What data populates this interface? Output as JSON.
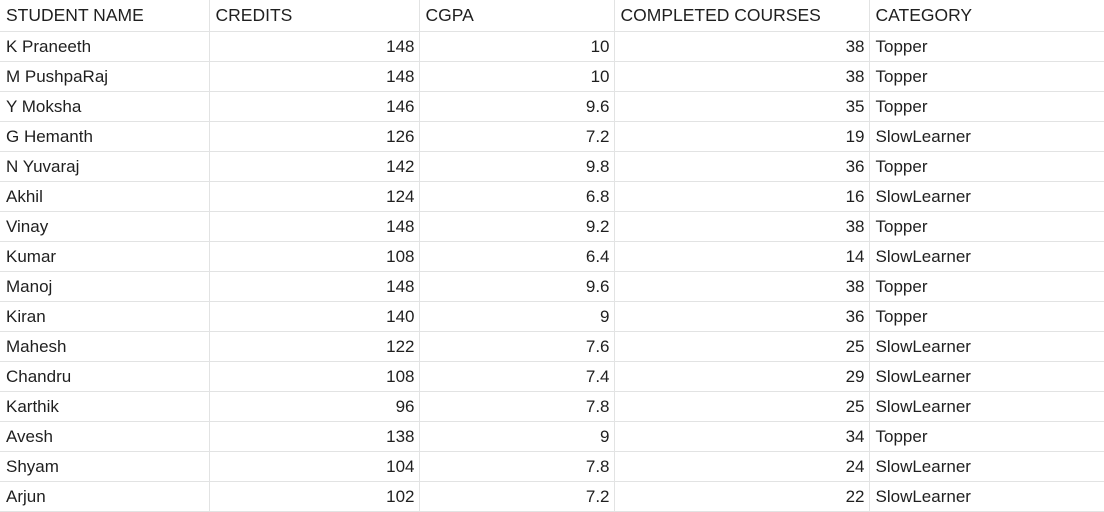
{
  "sheet": {
    "headers": [
      "STUDENT NAME",
      "CREDITS",
      "CGPA",
      "COMPLETED COURSES",
      "CATEGORY"
    ],
    "rows": [
      [
        "K Praneeth",
        "148",
        "10",
        "38",
        "Topper"
      ],
      [
        "M PushpaRaj",
        "148",
        "10",
        "38",
        "Topper"
      ],
      [
        "Y Moksha",
        "146",
        "9.6",
        "35",
        "Topper"
      ],
      [
        "G Hemanth",
        "126",
        "7.2",
        "19",
        "SlowLearner"
      ],
      [
        "N Yuvaraj",
        "142",
        "9.8",
        "36",
        "Topper"
      ],
      [
        "Akhil",
        "124",
        "6.8",
        "16",
        "SlowLearner"
      ],
      [
        "Vinay",
        "148",
        "9.2",
        "38",
        "Topper"
      ],
      [
        "Kumar",
        "108",
        "6.4",
        "14",
        "SlowLearner"
      ],
      [
        "Manoj",
        "148",
        "9.6",
        "38",
        "Topper"
      ],
      [
        "Kiran",
        "140",
        "9",
        "36",
        "Topper"
      ],
      [
        "Mahesh",
        "122",
        "7.6",
        "25",
        "SlowLearner"
      ],
      [
        "Chandru",
        "108",
        "7.4",
        "29",
        "SlowLearner"
      ],
      [
        "Karthik",
        "96",
        "7.8",
        "25",
        "SlowLearner"
      ],
      [
        "Avesh",
        "138",
        "9",
        "34",
        "Topper"
      ],
      [
        "Shyam",
        "104",
        "7.8",
        "24",
        "SlowLearner"
      ],
      [
        "Arjun",
        "102",
        "7.2",
        "22",
        "SlowLearner"
      ]
    ]
  }
}
